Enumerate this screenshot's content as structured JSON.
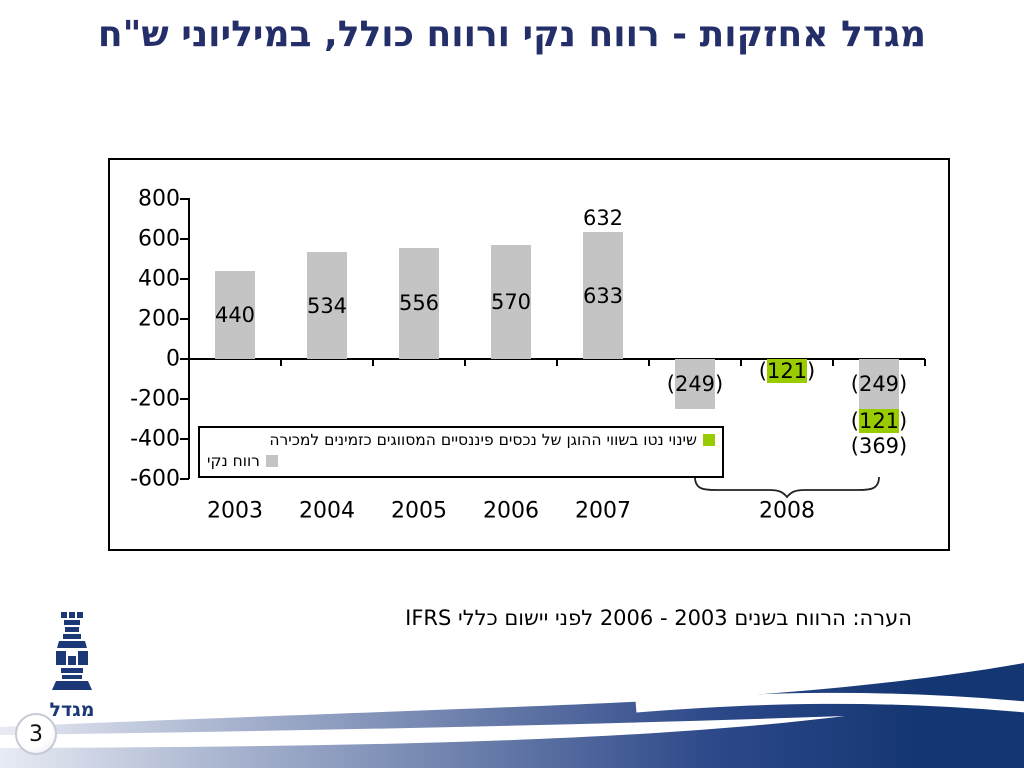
{
  "slide": {
    "title": "מגדל אחזקות - רווח נקי ורווח כולל, במיליוני ש\"ח",
    "note": "הערה: הרווח בשנים 2003 - 2006 לפני יישום כללי IFRS",
    "page_number": "3",
    "logo_text": "מגדל",
    "colors": {
      "title_navy": "#242e69",
      "swoosh_navy_dark": "#143672",
      "swoosh_navy_light": "#e8ebf3"
    }
  },
  "chart_data": {
    "type": "bar",
    "title": "מגדל אחזקות - רווח נקי ורווח כולל, במיליוני ש\"ח",
    "xlabel": "",
    "ylabel": "",
    "ylim": [
      -600,
      800
    ],
    "yticks": [
      800,
      600,
      400,
      200,
      0,
      -200,
      -400,
      -600
    ],
    "grid": false,
    "legend_position": "inside-bottom-left",
    "series": [
      {
        "key": "net_profit",
        "name": "רווח נקי",
        "color": "#c4c4c4"
      },
      {
        "key": "fair_value_change",
        "name": "שינוי נטו בשווי ההוגן של נכסים פיננסיים המסווגים כזמינים למכירה",
        "color": "#99cc00"
      }
    ],
    "bars": [
      {
        "category": "2003",
        "segments": [
          {
            "series": "net_profit",
            "value": 440,
            "label": "440"
          }
        ]
      },
      {
        "category": "2004",
        "segments": [
          {
            "series": "net_profit",
            "value": 534,
            "label": "534"
          }
        ]
      },
      {
        "category": "2005",
        "segments": [
          {
            "series": "net_profit",
            "value": 556,
            "label": "556"
          }
        ]
      },
      {
        "category": "2006",
        "segments": [
          {
            "series": "net_profit",
            "value": 570,
            "label": "570"
          }
        ]
      },
      {
        "category": "2007",
        "segments": [
          {
            "series": "net_profit",
            "value": 633,
            "label": "633"
          }
        ],
        "label_above": "632"
      },
      {
        "category": "2008",
        "segments": [
          {
            "series": "net_profit",
            "value": -249,
            "label": "(249)"
          }
        ]
      },
      {
        "category": "2008",
        "segments": [
          {
            "series": "fair_value_change",
            "value": -121,
            "label": "(121)"
          }
        ]
      },
      {
        "category": "2008",
        "segments": [
          {
            "series": "net_profit",
            "value": -249,
            "label": "(249)"
          },
          {
            "series": "fair_value_change",
            "value": -121,
            "label": "(121)"
          }
        ],
        "total_label": "(369)"
      }
    ],
    "x_group_label": "2008"
  }
}
